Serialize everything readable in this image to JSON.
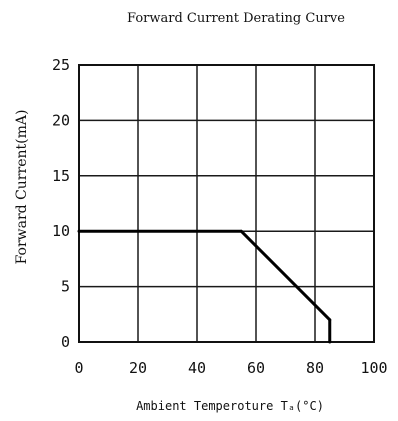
{
  "chart_data": {
    "type": "line",
    "title": "Forward Current Derating Curve",
    "xlabel": "Ambient Temperoture Tₐ(°C)",
    "ylabel": "Forward Current(mA)",
    "xlim": [
      0,
      100
    ],
    "ylim": [
      0,
      25
    ],
    "x_ticks": [
      0,
      20,
      40,
      60,
      80,
      100
    ],
    "y_ticks": [
      0,
      5,
      10,
      15,
      20,
      25
    ],
    "x_tick_labels": [
      "0",
      "20",
      "40",
      "60",
      "80",
      "100"
    ],
    "y_tick_labels": [
      "0",
      "5",
      "10",
      "15",
      "20",
      "25"
    ],
    "grid": true,
    "series": [
      {
        "x": [
          0,
          55,
          85,
          85
        ],
        "y": [
          10,
          10,
          2,
          0
        ]
      }
    ]
  }
}
